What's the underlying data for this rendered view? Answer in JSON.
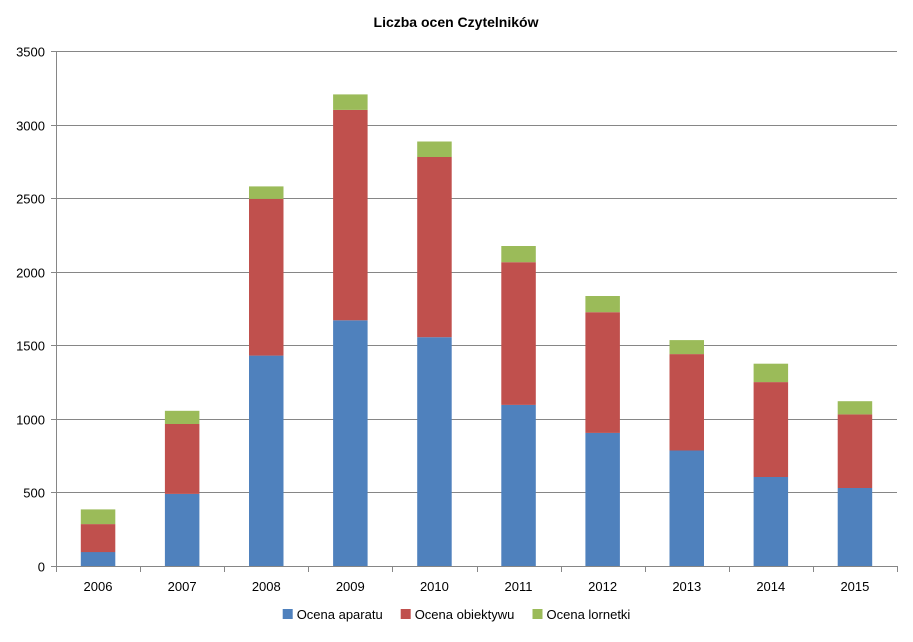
{
  "chart_data": {
    "type": "bar",
    "stacked": true,
    "title": "Liczba ocen Czytelników",
    "xlabel": "",
    "ylabel": "",
    "categories": [
      "2006",
      "2007",
      "2008",
      "2009",
      "2010",
      "2011",
      "2012",
      "2013",
      "2014",
      "2015"
    ],
    "series": [
      {
        "name": "Ocena aparatu",
        "color": "#4f81bd",
        "values": [
          95,
          490,
          1430,
          1670,
          1555,
          1095,
          905,
          785,
          605,
          530
        ]
      },
      {
        "name": "Ocena obiektywu",
        "color": "#c0504d",
        "values": [
          190,
          475,
          1065,
          1430,
          1225,
          970,
          820,
          655,
          645,
          500
        ]
      },
      {
        "name": "Ocena lornetki",
        "color": "#9bbb59",
        "values": [
          100,
          90,
          85,
          105,
          105,
          110,
          110,
          95,
          125,
          90
        ]
      }
    ],
    "ylim": [
      0,
      3500
    ],
    "yticks": [
      0,
      500,
      1000,
      1500,
      2000,
      2500,
      3000,
      3500
    ],
    "grid": true,
    "legend": "bottom"
  }
}
